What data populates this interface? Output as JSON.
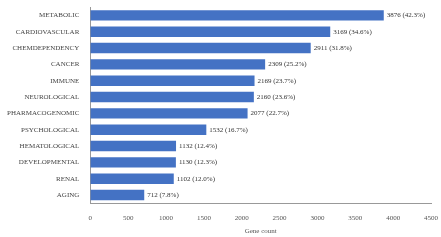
{
  "chart_data": {
    "type": "bar",
    "orientation": "horizontal",
    "categories": [
      "METABOLIC",
      "CARDIOVASCULAR",
      "CHEMDEPENDENCY",
      "CANCER",
      "IMMUNE",
      "NEUROLOGICAL",
      "PHARMACOGENOMIC",
      "PSYCHOLOGICAL",
      "HEMATOLOGICAL",
      "DEVELOPMENTAL",
      "RENAL",
      "AGING"
    ],
    "values": [
      3876,
      3169,
      2911,
      2309,
      2169,
      2160,
      2077,
      1532,
      1132,
      1130,
      1102,
      712
    ],
    "value_labels": [
      "3876 (42.3%)",
      "3169 (34.6%)",
      "2911 (31.8%)",
      "2309 (25.2%)",
      "2169 (23.7%)",
      "2160 (23.6%)",
      "2077 (22.7%)",
      "1532 (16.7%)",
      "1132 (12.4%)",
      "1130 (12.3%)",
      "1102 (12.0%)",
      "712 (7.8%)"
    ],
    "data_labels": true,
    "color": "#4472c4",
    "xlabel": "Gene count",
    "xlim": [
      0,
      4500
    ],
    "xticks": [
      0,
      500,
      1000,
      1500,
      2000,
      2500,
      3000,
      3500,
      4000,
      4500
    ],
    "grid": false
  }
}
